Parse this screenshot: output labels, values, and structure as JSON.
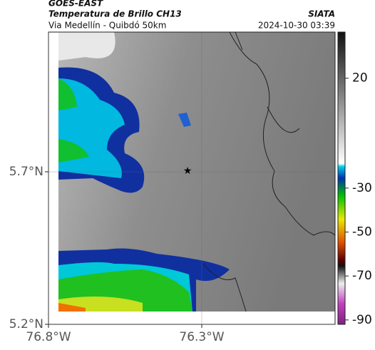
{
  "header": {
    "source": "GOES-EAST",
    "title": "Temperatura de Brillo CH13",
    "subtitle": "Via Medellín - Quibdó 50km",
    "credit": "SIATA",
    "timestamp": "2024-10-30 03:39"
  },
  "map": {
    "xlim": [
      -76.8,
      -75.865
    ],
    "ylim": [
      5.2,
      6.158
    ],
    "xticks": [
      {
        "value": -76.8,
        "label": "76.8°W"
      },
      {
        "value": -76.3,
        "label": "76.3°W"
      }
    ],
    "yticks": [
      {
        "value": 5.2,
        "label": "5.2°N"
      },
      {
        "value": 5.7,
        "label": "5.7°N"
      }
    ],
    "marker": {
      "lon": -76.346,
      "lat": 5.702
    }
  },
  "colorbar": {
    "lim": [
      -92,
      41
    ],
    "ticks": [
      20,
      -30,
      -50,
      -70,
      -90
    ]
  }
}
